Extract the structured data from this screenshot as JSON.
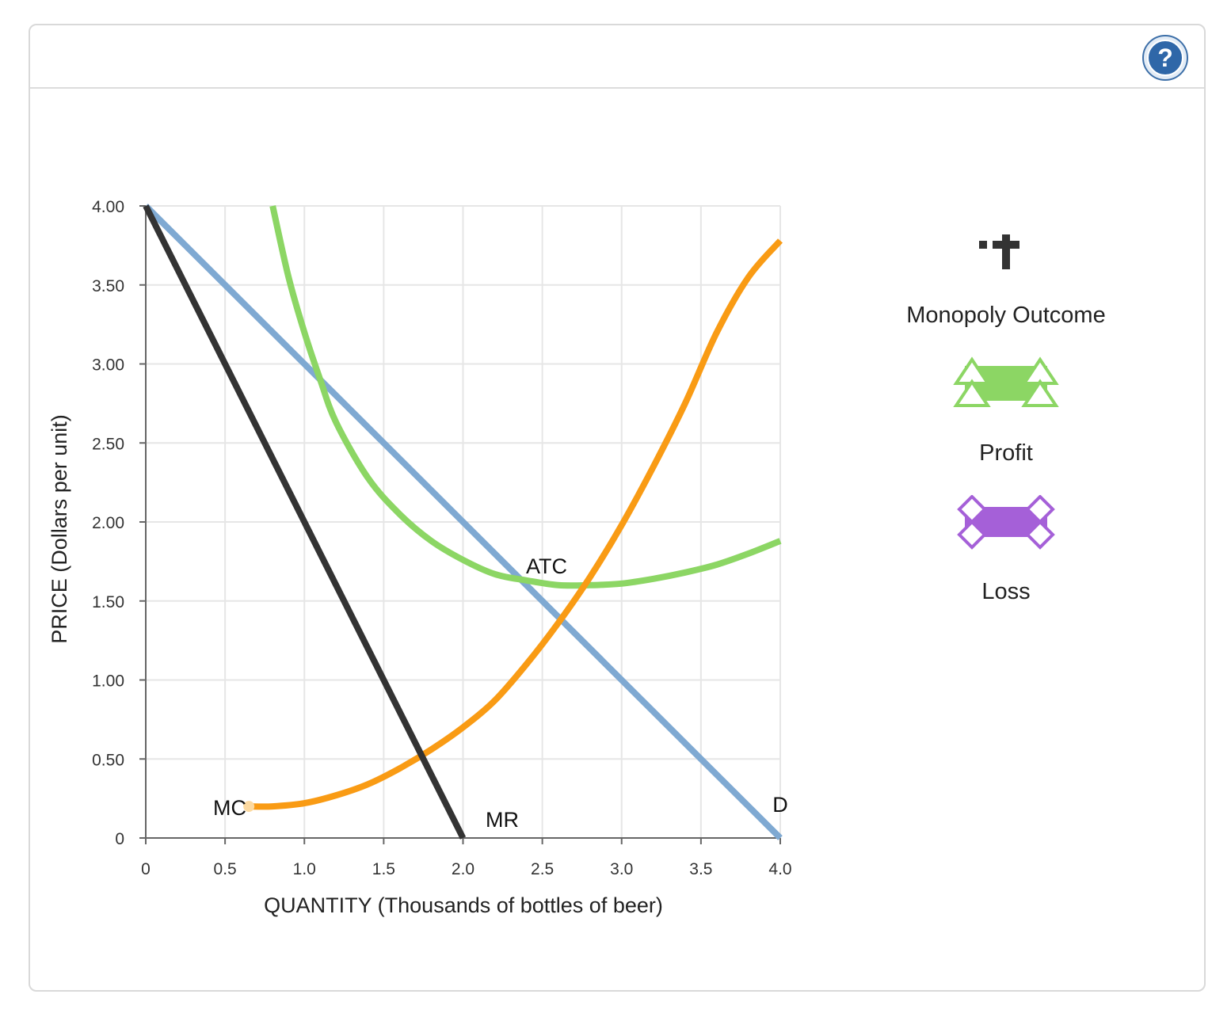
{
  "help": {
    "label": "?"
  },
  "palette": {
    "items": [
      {
        "label": "Monopoly Outcome",
        "icon": "monopoly-outcome-icon",
        "color": "#333333"
      },
      {
        "label": "Profit",
        "icon": "profit-icon",
        "color": "#8cd664"
      },
      {
        "label": "Loss",
        "icon": "loss-icon",
        "color": "#a560d8"
      }
    ]
  },
  "chart_data": {
    "type": "line",
    "xlabel": "QUANTITY (Thousands of bottles of beer)",
    "ylabel": "PRICE (Dollars per unit)",
    "xlim": [
      0,
      4.0
    ],
    "ylim": [
      0,
      4.0
    ],
    "x_ticks": [
      "0",
      "0.5",
      "1.0",
      "1.5",
      "2.0",
      "2.5",
      "3.0",
      "3.5",
      "4.0"
    ],
    "y_ticks": [
      "0",
      "0.50",
      "1.00",
      "1.50",
      "2.00",
      "2.50",
      "3.00",
      "3.50",
      "4.00"
    ],
    "grid": true,
    "series": [
      {
        "name": "D",
        "color": "#7fa9d2",
        "x": [
          0,
          4.0
        ],
        "y": [
          4.0,
          0
        ]
      },
      {
        "name": "MR",
        "color": "#333333",
        "x": [
          0,
          2.0
        ],
        "y": [
          4.0,
          0
        ]
      },
      {
        "name": "ATC",
        "color": "#8cd664",
        "x": [
          0.8,
          0.9,
          1.0,
          1.1,
          1.2,
          1.4,
          1.6,
          1.8,
          2.0,
          2.2,
          2.4,
          2.6,
          2.8,
          3.0,
          3.2,
          3.4,
          3.6,
          3.8,
          4.0
        ],
        "y": [
          4.0,
          3.55,
          3.2,
          2.9,
          2.63,
          2.28,
          2.05,
          1.88,
          1.76,
          1.67,
          1.63,
          1.6,
          1.6,
          1.61,
          1.64,
          1.68,
          1.73,
          1.8,
          1.88
        ]
      },
      {
        "name": "MC",
        "color": "#f99b14",
        "x": [
          0.65,
          0.8,
          1.0,
          1.2,
          1.4,
          1.6,
          1.8,
          2.0,
          2.2,
          2.4,
          2.6,
          2.8,
          3.0,
          3.2,
          3.4,
          3.6,
          3.8,
          4.0
        ],
        "y": [
          0.2,
          0.2,
          0.22,
          0.27,
          0.34,
          0.44,
          0.56,
          0.7,
          0.87,
          1.1,
          1.36,
          1.65,
          1.98,
          2.35,
          2.75,
          3.2,
          3.55,
          3.78
        ]
      }
    ]
  }
}
